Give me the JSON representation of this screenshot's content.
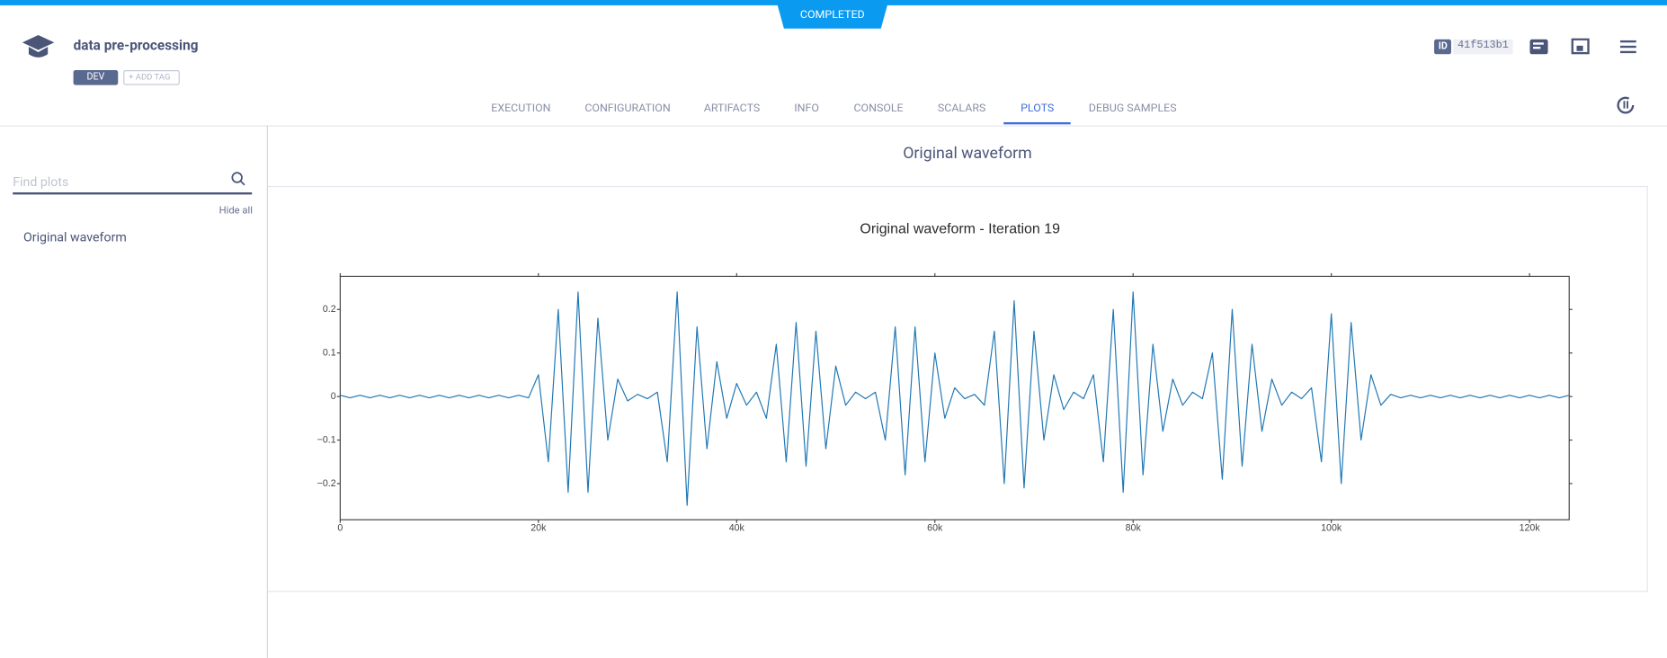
{
  "header": {
    "status": "COMPLETED",
    "title": "data pre-processing",
    "tag": "DEV",
    "add_tag": "ADD TAG",
    "id_label": "ID",
    "id": "41f513b1"
  },
  "tabs": [
    "EXECUTION",
    "CONFIGURATION",
    "ARTIFACTS",
    "INFO",
    "CONSOLE",
    "SCALARS",
    "PLOTS",
    "DEBUG SAMPLES"
  ],
  "sidebar": {
    "search_placeholder": "Find plots",
    "hide_all": "Hide all",
    "items": [
      "Original waveform"
    ]
  },
  "section_title": "Original waveform",
  "chart_data": {
    "type": "line",
    "title": "Original waveform - Iteration 19",
    "x": [
      0,
      1000,
      2000,
      3000,
      4000,
      5000,
      6000,
      7000,
      8000,
      9000,
      10000,
      11000,
      12000,
      13000,
      14000,
      15000,
      16000,
      17000,
      18000,
      19000,
      20000,
      21000,
      22000,
      23000,
      24000,
      25000,
      26000,
      27000,
      28000,
      29000,
      30000,
      31000,
      32000,
      33000,
      34000,
      35000,
      36000,
      37000,
      38000,
      39000,
      40000,
      41000,
      42000,
      43000,
      44000,
      45000,
      46000,
      47000,
      48000,
      49000,
      50000,
      51000,
      52000,
      53000,
      54000,
      55000,
      56000,
      57000,
      58000,
      59000,
      60000,
      61000,
      62000,
      63000,
      64000,
      65000,
      66000,
      67000,
      68000,
      69000,
      70000,
      71000,
      72000,
      73000,
      74000,
      75000,
      76000,
      77000,
      78000,
      79000,
      80000,
      81000,
      82000,
      83000,
      84000,
      85000,
      86000,
      87000,
      88000,
      89000,
      90000,
      91000,
      92000,
      93000,
      94000,
      95000,
      96000,
      97000,
      98000,
      99000,
      100000,
      101000,
      102000,
      103000,
      104000,
      105000,
      106000,
      107000,
      108000,
      109000,
      110000,
      111000,
      112000,
      113000,
      114000,
      115000,
      116000,
      117000,
      118000,
      119000,
      120000,
      121000,
      122000,
      123000,
      124000
    ],
    "series": [
      {
        "color": "#1f77b4",
        "values": [
          0.003,
          -0.003,
          0.003,
          -0.003,
          0.003,
          -0.003,
          0.003,
          -0.003,
          0.003,
          -0.003,
          0.003,
          -0.003,
          0.003,
          -0.003,
          0.003,
          -0.003,
          0.003,
          -0.003,
          0.003,
          -0.003,
          0.05,
          -0.15,
          0.2,
          -0.22,
          0.24,
          -0.22,
          0.18,
          -0.1,
          0.04,
          -0.01,
          0.005,
          -0.005,
          0.01,
          -0.15,
          0.24,
          -0.25,
          0.16,
          -0.12,
          0.08,
          -0.05,
          0.03,
          -0.02,
          0.01,
          -0.05,
          0.12,
          -0.15,
          0.17,
          -0.16,
          0.15,
          -0.12,
          0.07,
          -0.02,
          0.01,
          -0.005,
          0.01,
          -0.1,
          0.16,
          -0.18,
          0.16,
          -0.15,
          0.1,
          -0.05,
          0.02,
          -0.005,
          0.005,
          -0.02,
          0.15,
          -0.2,
          0.22,
          -0.21,
          0.15,
          -0.1,
          0.05,
          -0.03,
          0.01,
          -0.005,
          0.05,
          -0.15,
          0.2,
          -0.22,
          0.24,
          -0.18,
          0.12,
          -0.08,
          0.04,
          -0.02,
          0.01,
          -0.005,
          0.1,
          -0.19,
          0.2,
          -0.16,
          0.12,
          -0.08,
          0.04,
          -0.02,
          0.01,
          -0.005,
          0.02,
          -0.15,
          0.19,
          -0.2,
          0.17,
          -0.1,
          0.05,
          -0.02,
          0.005,
          -0.003,
          0.003,
          -0.003,
          0.003,
          -0.003,
          0.003,
          -0.003,
          0.003,
          -0.003,
          0.003,
          -0.003,
          0.003,
          -0.003,
          0.003,
          -0.003,
          0.003,
          -0.003,
          0.003
        ]
      }
    ],
    "xlim": [
      0,
      124000
    ],
    "ylim": [
      -0.283,
      0.276
    ],
    "xticks": [
      0,
      {
        "value": 20000,
        "label": "20k"
      },
      {
        "value": 40000,
        "label": "40k"
      },
      {
        "value": 60000,
        "label": "60k"
      },
      {
        "value": 80000,
        "label": "80k"
      },
      {
        "value": 100000,
        "label": "100k"
      },
      {
        "value": 120000,
        "label": "120k"
      }
    ],
    "yticks": [
      {
        "value": -0.2,
        "label": "−0.2"
      },
      {
        "value": -0.1,
        "label": "−0.1"
      },
      0,
      0.1,
      0.2
    ]
  }
}
